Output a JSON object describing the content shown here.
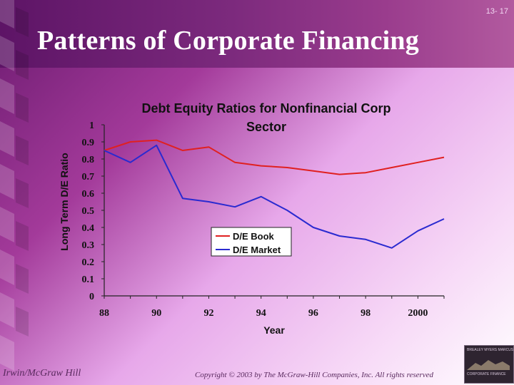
{
  "slide": {
    "number": "13- 17",
    "title": "Patterns of Corporate Financing",
    "footer_left": "Irwin/McGraw Hill",
    "footer_right": "Copyright © 2003 by The McGraw-Hill Companies, Inc. All rights reserved",
    "logo_top": "BREALEY MYERS MARCUS",
    "logo_bottom": "CORPORATE FINANCE"
  },
  "colors": {
    "book": "#e02020",
    "market": "#2a2ad0"
  },
  "chart_data": {
    "type": "line",
    "title_line1": "Debt Equity Ratios for Nonfinancial Corp",
    "title_line2": "Sector",
    "xlabel": "Year",
    "ylabel": "Long Term D/E Ratio",
    "x": [
      1988,
      1989,
      1990,
      1991,
      1992,
      1993,
      1994,
      1995,
      1996,
      1997,
      1998,
      1999,
      2000,
      2001
    ],
    "xlim": [
      1988,
      2001
    ],
    "x_ticks": [
      1988,
      1990,
      1992,
      1994,
      1996,
      1998,
      2000
    ],
    "x_tick_labels": [
      "88",
      "90",
      "92",
      "94",
      "96",
      "98",
      "2000"
    ],
    "ylim": [
      0,
      1
    ],
    "y_ticks": [
      0,
      0.1,
      0.2,
      0.3,
      0.4,
      0.5,
      0.6,
      0.7,
      0.8,
      0.9,
      1
    ],
    "y_tick_labels": [
      "0",
      "0.1",
      "0.2",
      "0.3",
      "0.4",
      "0.5",
      "0.6",
      "0.7",
      "0.8",
      "0.9",
      "1"
    ],
    "series": [
      {
        "name": "D/E Book",
        "values": [
          0.85,
          0.9,
          0.91,
          0.85,
          0.87,
          0.78,
          0.76,
          0.75,
          0.73,
          0.71,
          0.72,
          0.75,
          0.78,
          0.81
        ]
      },
      {
        "name": "D/E Market",
        "values": [
          0.85,
          0.78,
          0.88,
          0.57,
          0.55,
          0.52,
          0.58,
          0.5,
          0.4,
          0.35,
          0.33,
          0.28,
          0.38,
          0.45
        ]
      }
    ],
    "grid": false,
    "legend": "inside-center"
  }
}
